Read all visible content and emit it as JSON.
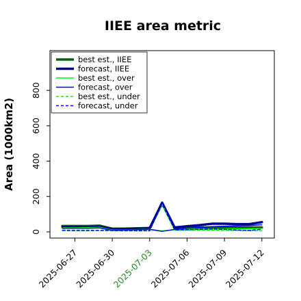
{
  "chart_data": {
    "type": "line",
    "title": "IIEE area metric",
    "xlabel": "",
    "ylabel": "Area (1000km2)",
    "ylim": [
      -35,
      1025
    ],
    "yticks": [
      0,
      200,
      400,
      600,
      800
    ],
    "ytick_labels": [
      "0",
      "200",
      "400",
      "600",
      "800"
    ],
    "x": [
      "2025-06-26",
      "2025-06-27",
      "2025-06-28",
      "2025-06-29",
      "2025-06-30",
      "2025-07-01",
      "2025-07-02",
      "2025-07-03",
      "2025-07-04",
      "2025-07-05",
      "2025-07-06",
      "2025-07-07",
      "2025-07-08",
      "2025-07-09",
      "2025-07-10",
      "2025-07-11",
      "2025-07-12"
    ],
    "xlim": [
      "2025-06-25",
      "2025-07-13"
    ],
    "xticks": [
      "2025-06-27",
      "2025-06-30",
      "2025-07-03",
      "2025-07-06",
      "2025-07-09",
      "2025-07-12"
    ],
    "xtick_labels": [
      "2025-06-27",
      "2025-06-30",
      "2025-07-03",
      "2025-07-06",
      "2025-07-09",
      "2025-07-12"
    ],
    "xtick_colors": [
      "#000000",
      "#000000",
      "#228b22",
      "#000000",
      "#000000",
      "#000000"
    ],
    "grid": false,
    "legend_position": "upper-left",
    "series": [
      {
        "name": "best est., IIEE",
        "color": "#006400",
        "style": "solid",
        "width": 3.5,
        "values": [
          33,
          33,
          33,
          35,
          18,
          18,
          20,
          22,
          160,
          23,
          25,
          25,
          25,
          24,
          24,
          25,
          25
        ]
      },
      {
        "name": "forecast, IIEE",
        "color": "#00008b",
        "style": "solid",
        "width": 3.5,
        "values": [
          28,
          27,
          27,
          30,
          15,
          16,
          18,
          20,
          165,
          25,
          32,
          38,
          46,
          46,
          44,
          44,
          55
        ]
      },
      {
        "name": "best est., over",
        "color": "#00ff00",
        "style": "solid",
        "width": 1.5,
        "values": [
          23,
          23,
          24,
          26,
          10,
          11,
          13,
          15,
          5,
          12,
          14,
          15,
          16,
          16,
          17,
          18,
          19
        ]
      },
      {
        "name": "forecast, over",
        "color": "#0000ff",
        "style": "solid",
        "width": 1.5,
        "values": [
          20,
          20,
          20,
          22,
          8,
          10,
          12,
          14,
          3,
          14,
          20,
          24,
          30,
          32,
          34,
          36,
          40
        ]
      },
      {
        "name": "best est., under",
        "color": "#00ff00",
        "style": "dashed",
        "width": 1.5,
        "values": [
          10,
          10,
          10,
          9,
          8,
          7,
          7,
          7,
          155,
          9,
          9,
          9,
          9,
          8,
          8,
          7,
          6
        ]
      },
      {
        "name": "forecast, under",
        "color": "#0000ff",
        "style": "dashed",
        "width": 1.5,
        "values": [
          8,
          7,
          7,
          8,
          7,
          6,
          6,
          6,
          162,
          11,
          12,
          14,
          16,
          14,
          10,
          8,
          15
        ]
      }
    ]
  }
}
